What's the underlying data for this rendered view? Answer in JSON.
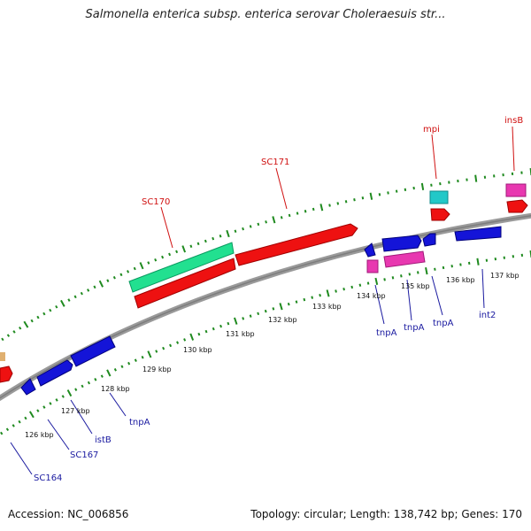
{
  "title": "Salmonella enterica subsp. enterica serovar Choleraesuis str...",
  "footer": {
    "accession": "Accession: NC_006856",
    "stats": "Topology: circular; Length: 138,742 bp; Genes: 170"
  },
  "colors": {
    "backbone": "#8a8a8a",
    "ticks": "#1f8a1f",
    "red_gene": "#ee1111",
    "blue_gene": "#1414d8",
    "green_gene": "#22e090",
    "cyan_gene": "#22c8c8",
    "pink_gene": "#e838b0",
    "red_label": "#d01010",
    "blue_label": "#1a1aa0"
  },
  "kbp_labels": [
    "126 kbp",
    "127 kbp",
    "128 kbp",
    "129 kbp",
    "130 kbp",
    "131 kbp",
    "132 kbp",
    "133 kbp",
    "134 kbp",
    "135 kbp",
    "136 kbp",
    "137 kbp"
  ],
  "genes_outer": [
    {
      "label": "SC170",
      "color": "green"
    },
    {
      "label": "SC171",
      "color": "red"
    },
    {
      "label": "mpi",
      "color": "cyan"
    },
    {
      "label": "insB",
      "color": "pink"
    }
  ],
  "genes_inner": [
    {
      "label": "SC164"
    },
    {
      "label": "SC167"
    },
    {
      "label": "istB"
    },
    {
      "label": "tnpA"
    },
    {
      "label": "tnpA"
    },
    {
      "label": "tnpA"
    },
    {
      "label": "tnpA"
    },
    {
      "label": "int2"
    }
  ]
}
